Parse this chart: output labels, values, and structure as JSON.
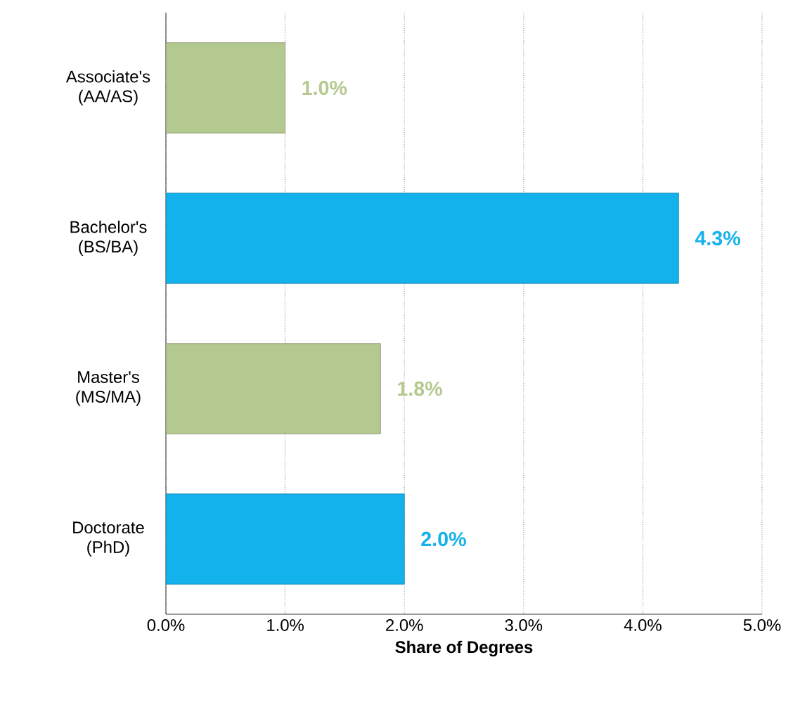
{
  "chart_data": {
    "type": "bar",
    "orientation": "horizontal",
    "categories": [
      "Associate's (AA/AS)",
      "Bachelor's (BS/BA)",
      "Master's (MS/MA)",
      "Doctorate (PhD)"
    ],
    "values": [
      1.0,
      4.3,
      1.8,
      2.0
    ],
    "colors": [
      "#b4c98f",
      "#14b2ec",
      "#b4c98f",
      "#14b2ec"
    ],
    "value_labels": [
      "1.0%",
      "4.3%",
      "1.8%",
      "2.0%"
    ],
    "xlabel": "Share of Degrees",
    "xlim": [
      0,
      5
    ],
    "xticks": [
      {
        "value": 0,
        "label": "0.0%"
      },
      {
        "value": 1,
        "label": "1.0%"
      },
      {
        "value": 2,
        "label": "2.0%"
      },
      {
        "value": 3,
        "label": "3.0%"
      },
      {
        "value": 4,
        "label": "4.0%"
      },
      {
        "value": 5,
        "label": "5.0%"
      }
    ],
    "grid": "x"
  }
}
